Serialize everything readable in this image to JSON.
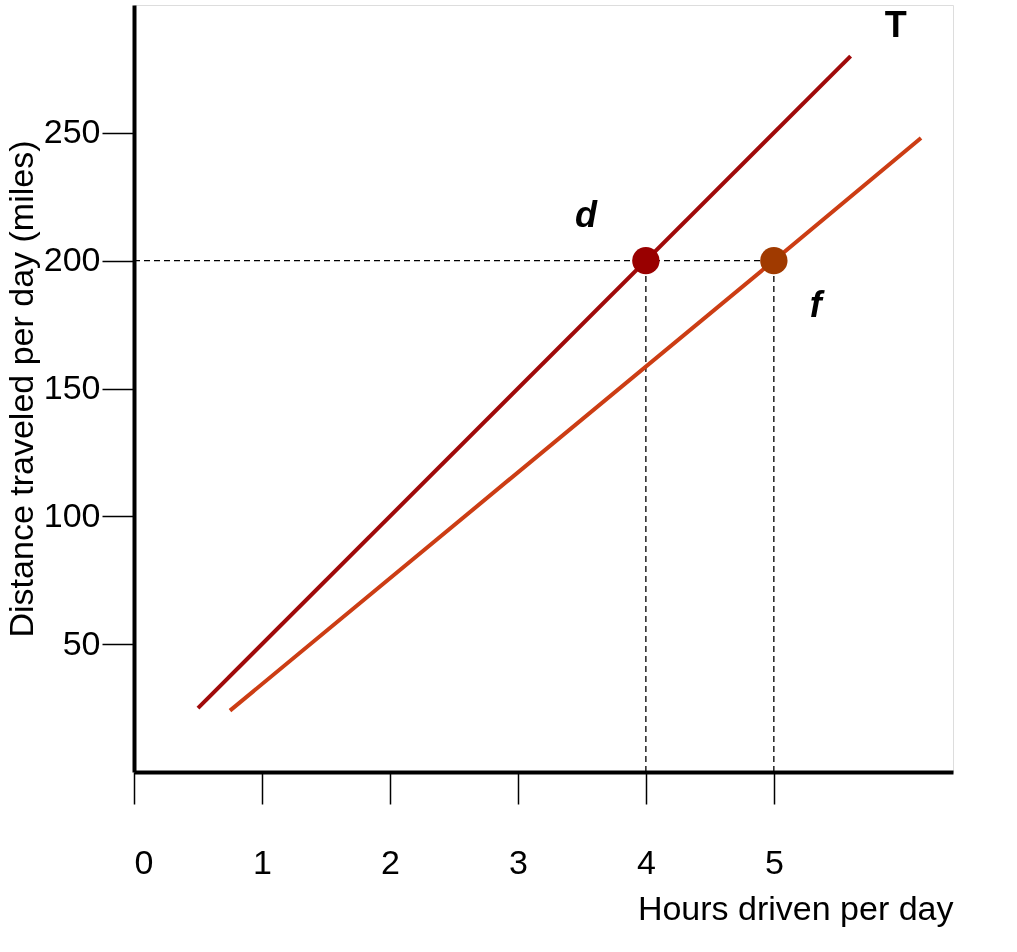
{
  "chart_data": {
    "type": "line",
    "xlabel": "Hours driven per day",
    "ylabel": "Distance traveled per day (miles)",
    "xlim": [
      0,
      6.4
    ],
    "ylim": [
      0,
      300
    ],
    "xticks": [
      0,
      1,
      2,
      3,
      4,
      5
    ],
    "yticks": [
      50,
      100,
      150,
      200,
      250
    ],
    "grid": false,
    "series": [
      {
        "name": "T",
        "color": "#a00a0a",
        "marker": "none",
        "x": [
          0.5,
          5.6
        ],
        "values": [
          25,
          280
        ]
      },
      {
        "color": "#cc3d14",
        "marker": "none",
        "x": [
          0.75,
          5,
          6.15
        ],
        "values": [
          24,
          200,
          248
        ]
      },
      {
        "type": "scatter",
        "color": "#990000",
        "marker": "circle",
        "x": [
          4
        ],
        "values": [
          200
        ]
      },
      {
        "type": "scatter",
        "color": "#a03a00",
        "marker": "circle",
        "x": [
          5
        ],
        "values": [
          200
        ]
      }
    ],
    "ref_lines": [
      {
        "axis": "y",
        "value": 200,
        "line_style": "dashed",
        "color": "#000000"
      },
      {
        "axis": "x",
        "value": 4,
        "line_style": "dashed",
        "color": "#000000"
      },
      {
        "axis": "x",
        "value": 5,
        "line_style": "dashed",
        "color": "#000000"
      }
    ],
    "annotations": [
      {
        "text": "d",
        "x": 4,
        "y": 200
      },
      {
        "text": "f",
        "x": 5,
        "y": 200
      }
    ]
  }
}
